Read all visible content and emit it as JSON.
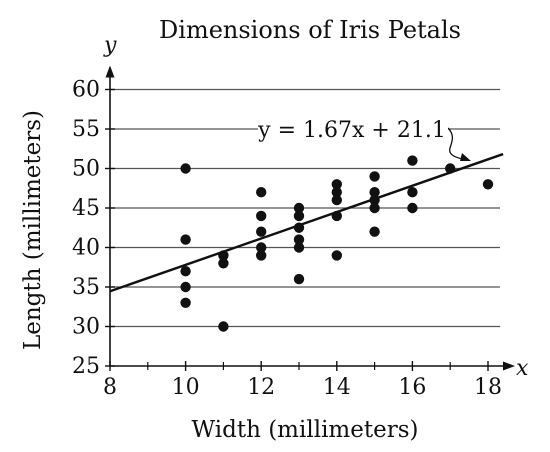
{
  "chart_data": {
    "type": "scatter",
    "title": "Dimensions of Iris Petals",
    "xlabel": "Width (millimeters)",
    "ylabel": "Length (millimeters)",
    "x_axis_variable": "x",
    "y_axis_variable": "y",
    "xlim": [
      8,
      18.5
    ],
    "ylim": [
      25,
      60
    ],
    "x_ticks": [
      8,
      10,
      12,
      14,
      16,
      18
    ],
    "y_ticks": [
      25,
      30,
      35,
      40,
      45,
      50,
      55,
      60
    ],
    "grid": "horizontal",
    "points": [
      {
        "x": 10,
        "y": 50
      },
      {
        "x": 10,
        "y": 41
      },
      {
        "x": 10,
        "y": 37
      },
      {
        "x": 10,
        "y": 35
      },
      {
        "x": 10,
        "y": 33
      },
      {
        "x": 11,
        "y": 39
      },
      {
        "x": 11,
        "y": 38
      },
      {
        "x": 11,
        "y": 30
      },
      {
        "x": 12,
        "y": 47
      },
      {
        "x": 12,
        "y": 44
      },
      {
        "x": 12,
        "y": 42
      },
      {
        "x": 12,
        "y": 40
      },
      {
        "x": 12,
        "y": 39
      },
      {
        "x": 13,
        "y": 45
      },
      {
        "x": 13,
        "y": 44
      },
      {
        "x": 13,
        "y": 42.5
      },
      {
        "x": 13,
        "y": 41
      },
      {
        "x": 13,
        "y": 40
      },
      {
        "x": 13,
        "y": 36
      },
      {
        "x": 14,
        "y": 48
      },
      {
        "x": 14,
        "y": 47
      },
      {
        "x": 14,
        "y": 46
      },
      {
        "x": 14,
        "y": 44
      },
      {
        "x": 14,
        "y": 39
      },
      {
        "x": 15,
        "y": 49
      },
      {
        "x": 15,
        "y": 47
      },
      {
        "x": 15,
        "y": 46
      },
      {
        "x": 15,
        "y": 45
      },
      {
        "x": 15,
        "y": 42
      },
      {
        "x": 16,
        "y": 51
      },
      {
        "x": 16,
        "y": 47
      },
      {
        "x": 16,
        "y": 45
      },
      {
        "x": 17,
        "y": 50
      },
      {
        "x": 18,
        "y": 48
      }
    ],
    "trend_line": {
      "slope": 1.67,
      "intercept": 21.1,
      "x_range": [
        8,
        18.4
      ]
    },
    "annotation": "y = 1.67x + 21.1"
  }
}
